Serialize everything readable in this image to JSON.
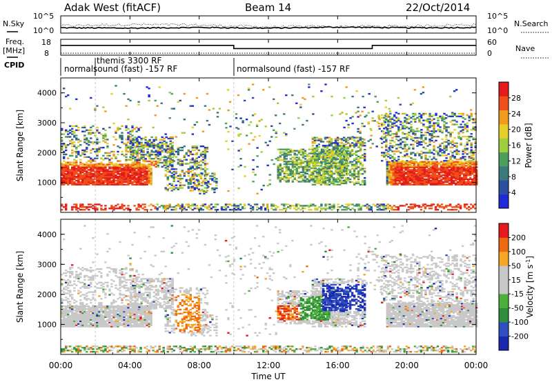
{
  "header": {
    "station": "Adak West (fitACF)",
    "beam": "Beam 14",
    "date": "22/Oct/2014"
  },
  "colors": {
    "power_scale": [
      "#1f2bd6",
      "#2c4fa0",
      "#3b7a7a",
      "#4f9f5c",
      "#9fcf3f",
      "#e6cf2a",
      "#f19a20",
      "#ef4f18",
      "#e41a1c"
    ],
    "velocity_scale": [
      "#e41a1c",
      "#ee6a12",
      "#f5a623",
      "#c8c8c8",
      "#c8c8c8",
      "#4caf3a",
      "#2d8d3a",
      "#2e4fc0",
      "#1a28b0"
    ]
  },
  "chart_data": [
    {
      "type": "line",
      "panel": "noise",
      "left_label_top": "N.Sky",
      "right_label": "N.Search",
      "left_ticks": [
        "10^5",
        "10^0"
      ],
      "right_ticks": [
        "10^5",
        "10^0"
      ],
      "x": [
        "00:00",
        "04:00",
        "08:00",
        "12:00",
        "16:00",
        "20:00",
        "00:00"
      ],
      "series": [
        {
          "values": [
            1.6,
            1.5,
            1.7,
            1.5,
            1.8,
            1.6,
            1.7
          ]
        },
        {
          "values": [
            2.2,
            2.6,
            2.4,
            1.9,
            2.0,
            2.1,
            2.6
          ]
        }
      ]
    },
    {
      "type": "line",
      "panel": "frequency",
      "left_label": "Freq.",
      "left_unit": "[MHz]",
      "right_label": "Nave",
      "left_ticks": [
        18,
        8
      ],
      "right_ticks": [
        60,
        0
      ],
      "time_hours": [
        0,
        10,
        10,
        18,
        18,
        24
      ],
      "freq_mhz": [
        14.4,
        14.4,
        12.0,
        12.0,
        14.4,
        14.4
      ],
      "nave": [
        6,
        6,
        6,
        6,
        6,
        6
      ]
    },
    {
      "type": "table",
      "panel": "cpid",
      "label": "CPID",
      "segments": [
        {
          "start_hour": 0,
          "text": "normalsound (fast) -157 RF"
        },
        {
          "start_hour": 2,
          "text": "themis 3300 RF"
        },
        {
          "start_hour": 10,
          "text": "normalsound (fast) -157 RF"
        }
      ]
    },
    {
      "type": "heatmap",
      "panel": "power",
      "ylabel": "Slant Range [km]",
      "colorbar_label": "Power [dB]",
      "colorbar_ticks": [
        4,
        8,
        12,
        16,
        20,
        24,
        28
      ],
      "y_ticks": [
        1000,
        2000,
        3000,
        4000
      ],
      "ylim": [
        0,
        4500
      ],
      "xlim_hours": [
        0,
        24
      ]
    },
    {
      "type": "heatmap",
      "panel": "velocity",
      "ylabel": "Slant Range [km]",
      "xlabel": "Time UT",
      "colorbar_label": "Velocity [m s",
      "colorbar_unit_sup": "-1",
      "colorbar_ticks": [
        200,
        100,
        50,
        15,
        -15,
        -50,
        -100,
        -200
      ],
      "y_ticks": [
        1000,
        2000,
        3000,
        4000
      ],
      "x_ticks": [
        "00:00",
        "04:00",
        "08:00",
        "12:00",
        "16:00",
        "20:00",
        "00:00"
      ],
      "ylim": [
        0,
        4500
      ],
      "xlim_hours": [
        0,
        24
      ]
    }
  ]
}
